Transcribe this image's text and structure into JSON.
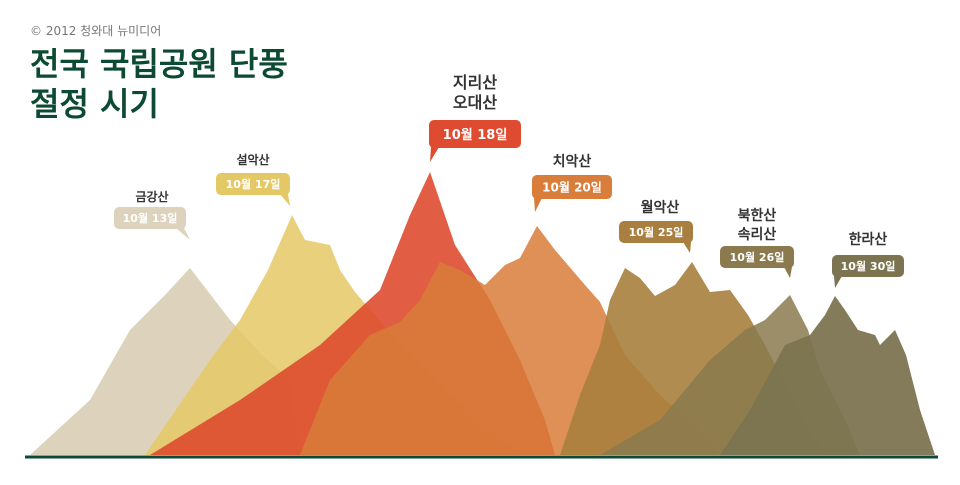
{
  "header": {
    "copyright": "© 2012 청와대 뉴미디어",
    "title_line1": "전국 국립공원 단풍",
    "title_line2": "절정 시기"
  },
  "chart_data": {
    "type": "area",
    "title": "전국 국립공원 단풍 절정 시기",
    "peaks": [
      {
        "names": [
          "금강산"
        ],
        "date": "10월 13일",
        "day": 13,
        "color": "#ddd3bc",
        "label_bg": "#ddd3bc",
        "label_fg": "#ffffff"
      },
      {
        "names": [
          "설악산"
        ],
        "date": "10월 17일",
        "day": 17,
        "color": "#e5c866",
        "label_bg": "#e5c866",
        "label_fg": "#ffffff"
      },
      {
        "names": [
          "지리산",
          "오대산"
        ],
        "date": "10월 18일",
        "day": 18,
        "color": "#de4b30",
        "label_bg": "#de4b30",
        "label_fg": "#ffffff"
      },
      {
        "names": [
          "치악산"
        ],
        "date": "10월 20일",
        "day": 20,
        "color": "#d87d3a",
        "label_bg": "#d87d3a",
        "label_fg": "#ffffff"
      },
      {
        "names": [
          "월악산"
        ],
        "date": "10월 25일",
        "day": 25,
        "color": "#a87f3e",
        "label_bg": "#a87f3e",
        "label_fg": "#ffffff"
      },
      {
        "names": [
          "북한산",
          "속리산"
        ],
        "date": "10월 26일",
        "day": 26,
        "color": "#8a7a4e",
        "label_bg": "#8a7a4e",
        "label_fg": "#ffffff"
      },
      {
        "names": [
          "한라산"
        ],
        "date": "10월 30일",
        "day": 30,
        "color": "#7c7450",
        "label_bg": "#7c7450",
        "label_fg": "#ffffff"
      }
    ],
    "baseline_color": "#0d4a33"
  }
}
